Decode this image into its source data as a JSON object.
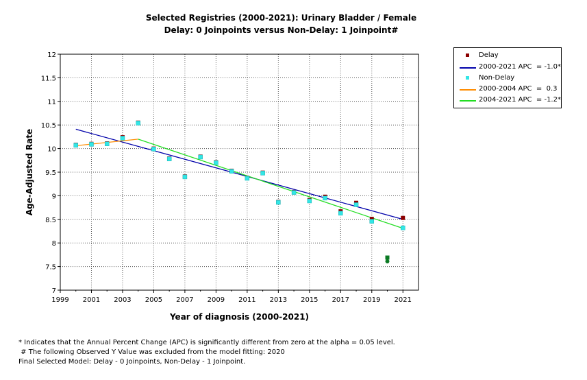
{
  "chart_data": {
    "type": "scatter",
    "title": "Selected Registries (2000-2021): Urinary Bladder / Female",
    "subtitle": "Delay: 0 Joinpoints  versus  Non-Delay: 1 Joinpoint#",
    "xlabel": "Year of diagnosis (2000-2021)",
    "ylabel": "Age-Adjusted Rate",
    "xlim": [
      1999,
      2022
    ],
    "ylim": [
      7,
      12
    ],
    "x_ticks": [
      "1999",
      "2001",
      "2003",
      "2005",
      "2007",
      "2009",
      "2011",
      "2013",
      "2015",
      "2017",
      "2019",
      "2021"
    ],
    "y_ticks": [
      "7",
      "7.5",
      "8",
      "8.5",
      "9",
      "9.5",
      "10",
      "10.5",
      "11",
      "11.5",
      "12"
    ],
    "grid": true,
    "legend_position": "right",
    "series": [
      {
        "name": "Delay",
        "kind": "points",
        "color": "#8b0000",
        "x": [
          2000,
          2001,
          2002,
          2003,
          2004,
          2005,
          2006,
          2007,
          2008,
          2009,
          2010,
          2011,
          2012,
          2013,
          2014,
          2015,
          2016,
          2017,
          2018,
          2019,
          2021
        ],
        "y": [
          10.08,
          10.1,
          10.11,
          10.24,
          10.55,
          10.0,
          9.79,
          9.41,
          9.83,
          9.71,
          9.53,
          9.38,
          9.49,
          8.87,
          9.08,
          8.91,
          8.98,
          8.67,
          8.85,
          8.51,
          8.53
        ]
      },
      {
        "name": "Non-Delay",
        "kind": "points",
        "color": "#33e6e6",
        "x": [
          2000,
          2001,
          2002,
          2003,
          2004,
          2005,
          2006,
          2007,
          2008,
          2009,
          2010,
          2011,
          2012,
          2013,
          2014,
          2015,
          2016,
          2017,
          2018,
          2019,
          2021
        ],
        "y": [
          10.07,
          10.09,
          10.1,
          10.22,
          10.54,
          9.99,
          9.78,
          9.4,
          9.82,
          9.7,
          9.52,
          9.37,
          9.48,
          8.86,
          9.07,
          8.89,
          8.95,
          8.63,
          8.81,
          8.46,
          8.32
        ]
      },
      {
        "name": "2000-2021 APC  = -1.0*",
        "kind": "line",
        "color": "#0000aa",
        "x": [
          2000,
          2021
        ],
        "y": [
          10.41,
          8.5
        ]
      },
      {
        "name": "2000-2004 APC  =  0.3",
        "kind": "line",
        "color": "#ff8c00",
        "x": [
          2000,
          2004
        ],
        "y": [
          10.06,
          10.2
        ]
      },
      {
        "name": "2004-2021 APC  = -1.2*",
        "kind": "line",
        "color": "#22dd22",
        "x": [
          2004,
          2021
        ],
        "y": [
          10.2,
          8.31
        ]
      },
      {
        "kind": "excluded",
        "color": "#0b7a24",
        "x": [
          2020,
          2020
        ],
        "y": [
          7.69,
          7.61
        ]
      }
    ],
    "legend": [
      {
        "label": "Delay",
        "symbol": "point",
        "color": "#8b0000"
      },
      {
        "label": "2000-2021 APC  = -1.0*",
        "symbol": "line",
        "color": "#0000aa"
      },
      {
        "label": "Non-Delay",
        "symbol": "point",
        "color": "#33e6e6"
      },
      {
        "label": "2000-2004 APC  =  0.3",
        "symbol": "line",
        "color": "#ff8c00"
      },
      {
        "label": "2004-2021 APC  = -1.2*",
        "symbol": "line",
        "color": "#22dd22"
      }
    ]
  },
  "footnotes": {
    "line1": "* Indicates that the Annual Percent Change (APC) is significantly different from zero at the alpha = 0.05 level.",
    "line2": " # The following Observed Y Value was excluded from the model fitting: 2020",
    "line3": "Final Selected Model: Delay - 0 Joinpoints, Non-Delay - 1 Joinpoint."
  }
}
